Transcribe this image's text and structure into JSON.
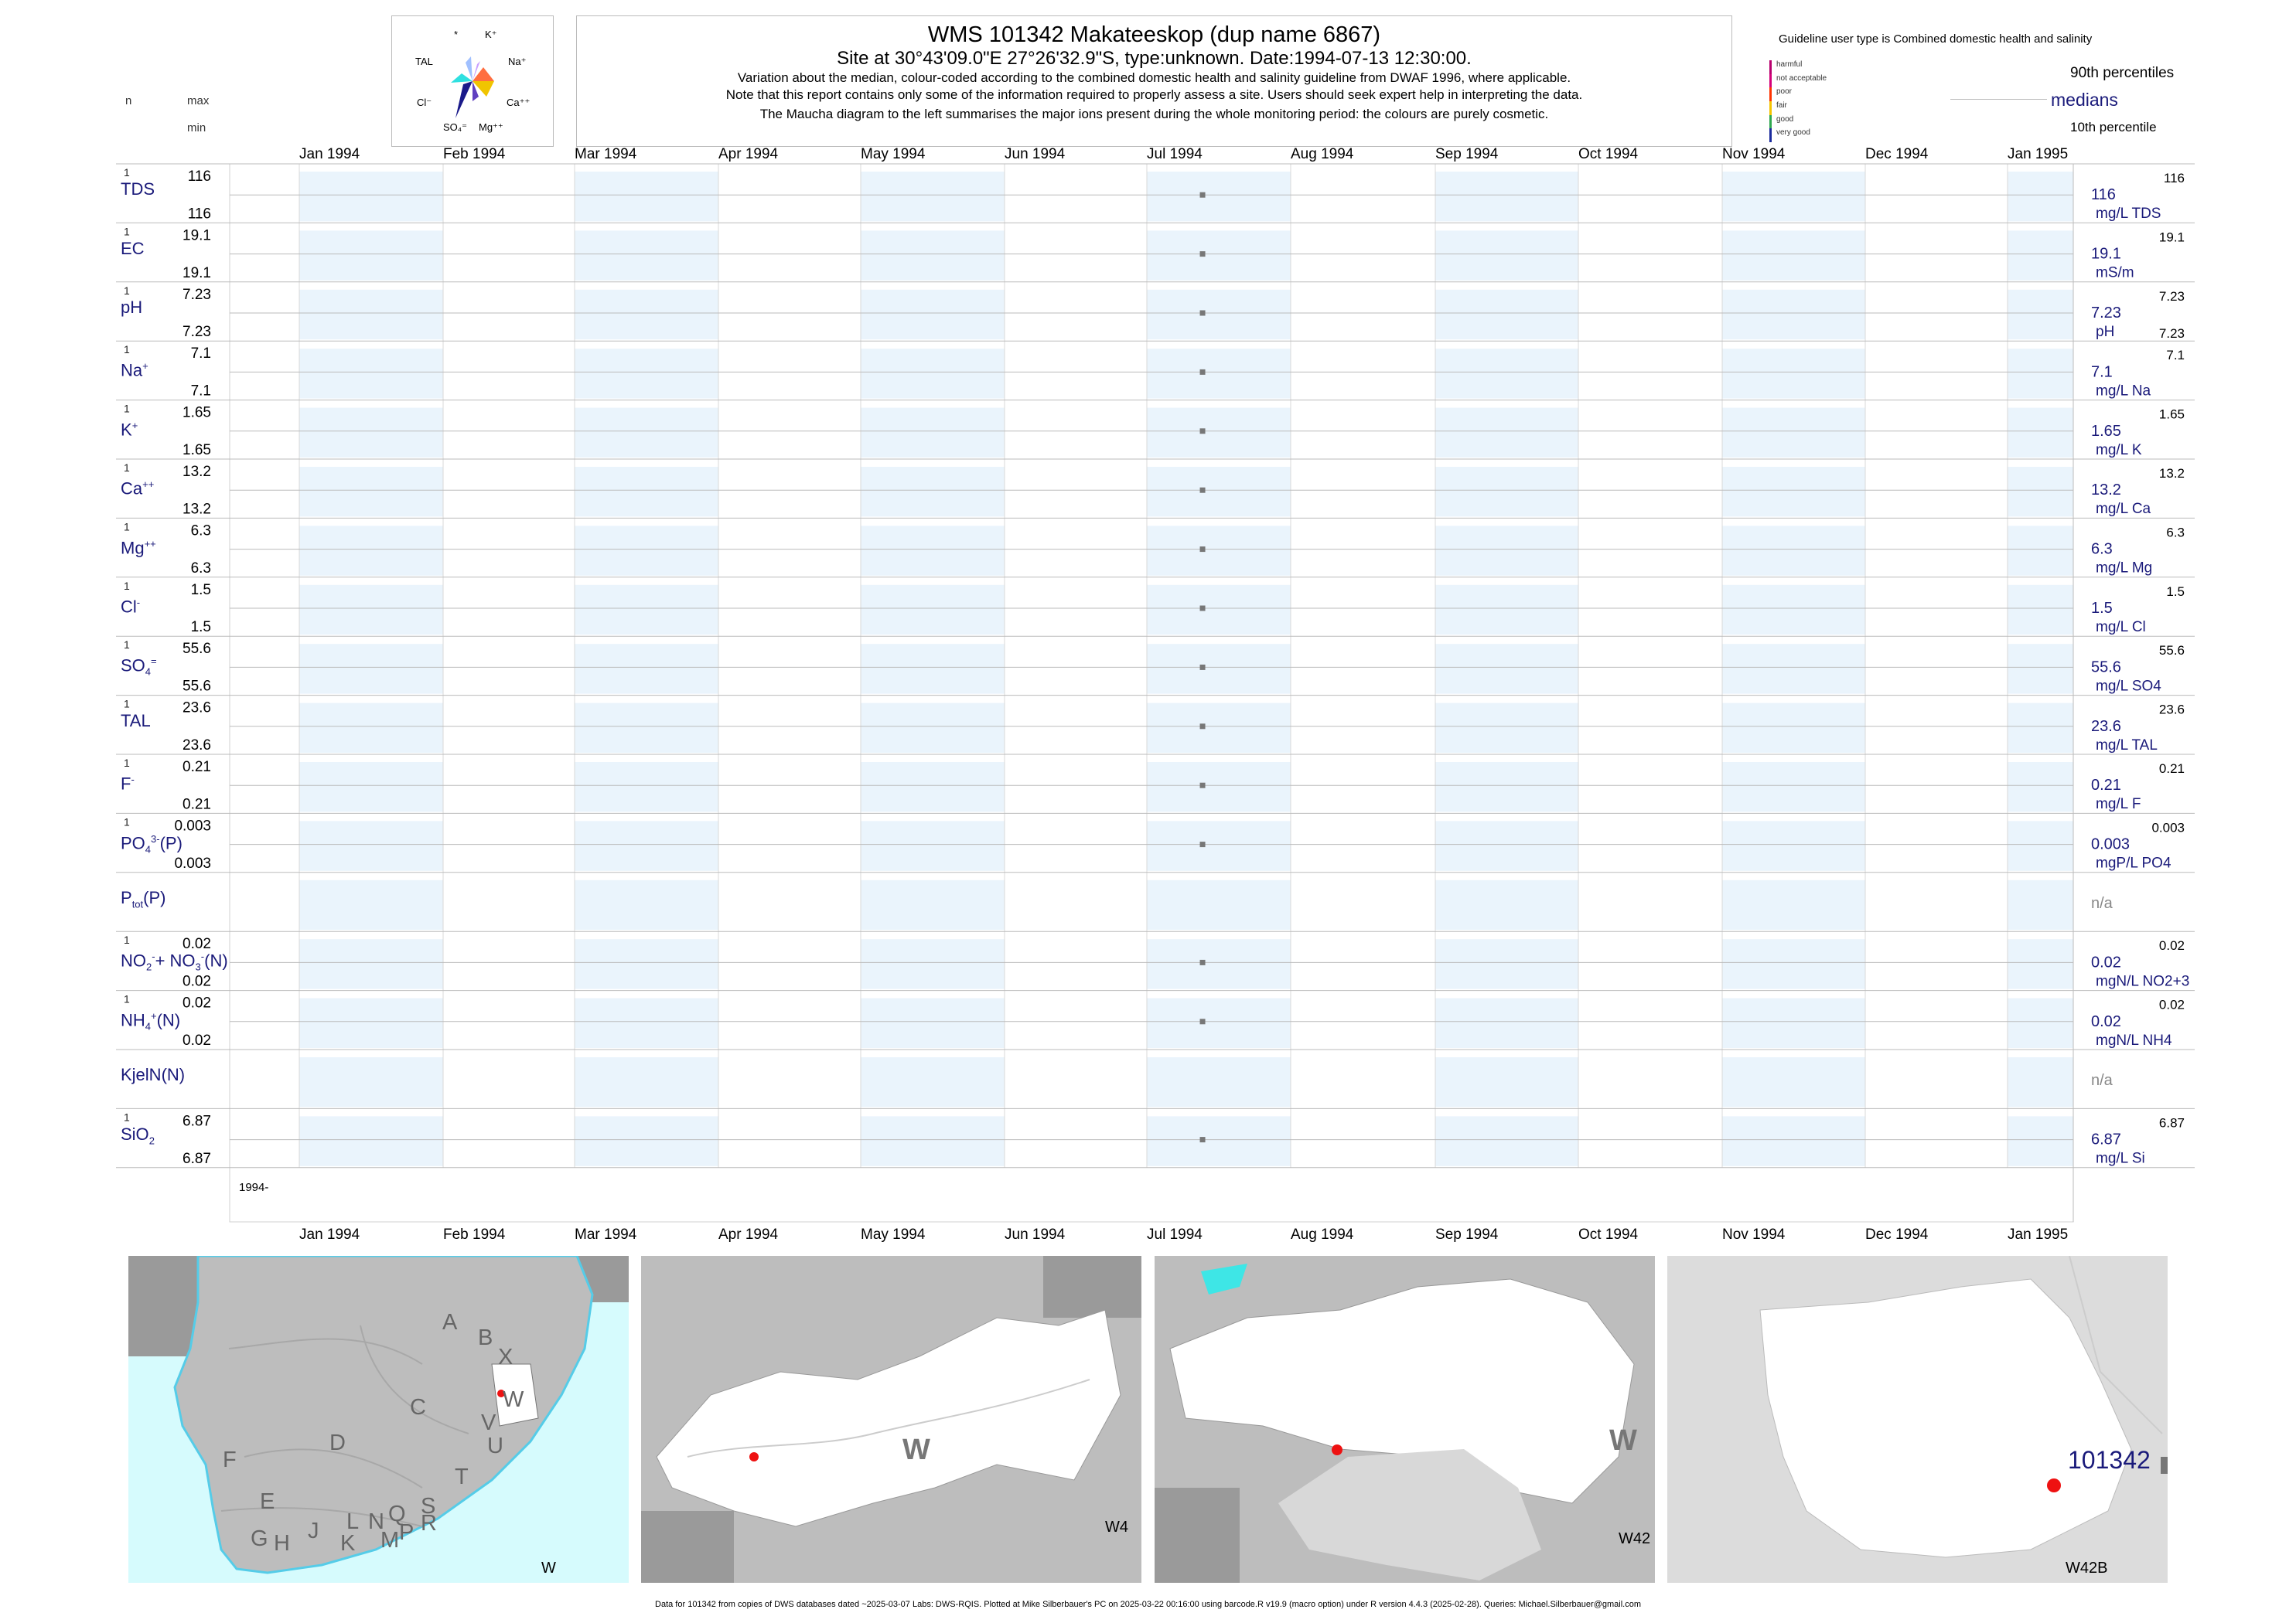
{
  "header": {
    "title": "WMS 101342  Makateeskop (dup name 6867)",
    "subtitle": "Site at 30°43'09.0\"E 27°26'32.9\"S, type:unknown. Date:1994-07-13 12:30:00.",
    "note1": "Variation about the median,  colour-coded according to the combined domestic health and salinity guideline from DWAF 1996, where applicable.",
    "note2": "Note that this report contains only some of the information required to properly assess a site. Users should seek expert help in interpreting the data.",
    "note3": "The Maucha diagram to the left summarises the major ions present during the whole monitoring period: the colours are purely cosmetic."
  },
  "left_header": {
    "n": "n",
    "max": "max",
    "min": "min"
  },
  "maucha": {
    "labels": [
      "*",
      "K⁺",
      "TAL",
      "Na⁺",
      "Cl⁻",
      "Ca⁺⁺",
      "SO₄⁼",
      "Mg⁺⁺"
    ]
  },
  "guideline": {
    "title": "Guideline user type is Combined domestic health and salinity",
    "levels": [
      {
        "label": "harmful",
        "color": "#b8006e"
      },
      {
        "label": "not acceptable",
        "color": "#d4007a"
      },
      {
        "label": "poor",
        "color": "#ff3300"
      },
      {
        "label": "fair",
        "color": "#f5c400"
      },
      {
        "label": "good",
        "color": "#2fa84f"
      },
      {
        "label": "very good",
        "color": "#1a2a9c"
      }
    ],
    "p90": "90th percentiles",
    "medians": "medians",
    "p10": "10th percentile"
  },
  "chart_data": {
    "type": "scatter",
    "x_start_label": "1994-",
    "months": [
      "Jan 1994",
      "Feb 1994",
      "Mar 1994",
      "Apr 1994",
      "May 1994",
      "Jun 1994",
      "Jul 1994",
      "Aug 1994",
      "Sep 1994",
      "Oct 1994",
      "Nov 1994",
      "Dec 1994",
      "Jan 1995"
    ],
    "sample_date": "1994-07-13",
    "grid": true,
    "series": [
      {
        "name": "TDS",
        "html": "TDS",
        "n": "1",
        "max": "116",
        "min": "116",
        "median": "116",
        "r_top": "116",
        "r_bot": "",
        "unit": "mg/L TDS",
        "value": 116
      },
      {
        "name": "EC",
        "html": "EC",
        "n": "1",
        "max": "19.1",
        "min": "19.1",
        "median": "19.1",
        "r_top": "19.1",
        "r_bot": "",
        "unit": "mS/m",
        "value": 19.1
      },
      {
        "name": "pH",
        "html": "pH",
        "n": "1",
        "max": "7.23",
        "min": "7.23",
        "median": "7.23",
        "r_top": "7.23",
        "r_bot": "7.23",
        "unit": "pH",
        "value": 7.23
      },
      {
        "name": "Na+",
        "html": "Na<sup>+</sup>",
        "n": "1",
        "max": "7.1",
        "min": "7.1",
        "median": "7.1",
        "r_top": "7.1",
        "r_bot": "",
        "unit": "mg/L Na",
        "value": 7.1
      },
      {
        "name": "K+",
        "html": "K<sup>+</sup>",
        "n": "1",
        "max": "1.65",
        "min": "1.65",
        "median": "1.65",
        "r_top": "1.65",
        "r_bot": "",
        "unit": "mg/L K",
        "value": 1.65
      },
      {
        "name": "Ca++",
        "html": "Ca<sup>++</sup>",
        "n": "1",
        "max": "13.2",
        "min": "13.2",
        "median": "13.2",
        "r_top": "13.2",
        "r_bot": "",
        "unit": "mg/L Ca",
        "value": 13.2
      },
      {
        "name": "Mg++",
        "html": "Mg<sup>++</sup>",
        "n": "1",
        "max": "6.3",
        "min": "6.3",
        "median": "6.3",
        "r_top": "6.3",
        "r_bot": "",
        "unit": "mg/L Mg",
        "value": 6.3
      },
      {
        "name": "Cl-",
        "html": "Cl<sup>-</sup>",
        "n": "1",
        "max": "1.5",
        "min": "1.5",
        "median": "1.5",
        "r_top": "1.5",
        "r_bot": "",
        "unit": "mg/L Cl",
        "value": 1.5
      },
      {
        "name": "SO4=",
        "html": "SO<sub>4</sub><sup>=</sup>",
        "n": "1",
        "max": "55.6",
        "min": "55.6",
        "median": "55.6",
        "r_top": "55.6",
        "r_bot": "",
        "unit": "mg/L SO4",
        "value": 55.6
      },
      {
        "name": "TAL",
        "html": "TAL",
        "n": "1",
        "max": "23.6",
        "min": "23.6",
        "median": "23.6",
        "r_top": "23.6",
        "r_bot": "",
        "unit": "mg/L TAL",
        "value": 23.6
      },
      {
        "name": "F-",
        "html": "F<sup>-</sup>",
        "n": "1",
        "max": "0.21",
        "min": "0.21",
        "median": "0.21",
        "r_top": "0.21",
        "r_bot": "",
        "unit": "mg/L F",
        "value": 0.21
      },
      {
        "name": "PO4(P)",
        "html": "PO<sub>4</sub><sup>3-</sup>(P)",
        "n": "1",
        "max": "0.003",
        "min": "0.003",
        "median": "0.003",
        "r_top": "0.003",
        "r_bot": "",
        "unit": "mgP/L PO4",
        "value": 0.003
      },
      {
        "name": "Ptot(P)",
        "html": "P<sub>tot</sub>(P)",
        "n": "",
        "max": "",
        "min": "",
        "median": "n/a",
        "r_top": "",
        "r_bot": "",
        "unit": "",
        "value": null
      },
      {
        "name": "NO2+NO3(N)",
        "html": "NO<sub>2</sub><sup>-</sup>+ NO<sub>3</sub><sup>-</sup>(N)",
        "n": "1",
        "max": "0.02",
        "min": "0.02",
        "median": "0.02",
        "r_top": "0.02",
        "r_bot": "",
        "unit": "mgN/L NO2+3",
        "value": 0.02
      },
      {
        "name": "NH4(N)",
        "html": "NH<sub>4</sub><sup>+</sup>(N)",
        "n": "1",
        "max": "0.02",
        "min": "0.02",
        "median": "0.02",
        "r_top": "0.02",
        "r_bot": "",
        "unit": "mgN/L NH4",
        "value": 0.02
      },
      {
        "name": "KjelN(N)",
        "html": "KjelN(N)",
        "n": "",
        "max": "",
        "min": "",
        "median": "n/a",
        "r_top": "",
        "r_bot": "",
        "unit": "",
        "value": null
      },
      {
        "name": "SiO2",
        "html": "SiO<sub>2</sub>",
        "n": "1",
        "max": "6.87",
        "min": "6.87",
        "median": "6.87",
        "r_top": "6.87",
        "r_bot": "",
        "unit": "mg/L Si",
        "value": 6.87
      }
    ]
  },
  "maps": {
    "m1_letters": [
      "A",
      "B",
      "X",
      "C",
      "W",
      "V",
      "U",
      "D",
      "T",
      "F",
      "E",
      "G",
      "H",
      "J",
      "K",
      "L",
      "N",
      "Q",
      "M",
      "P",
      "R",
      "S"
    ],
    "m1_caption": "W",
    "m2_letter": "W",
    "m2_caption": "W4",
    "m3_letter": "W",
    "m3_caption": "W42",
    "m4_site": "101342",
    "m4_caption": "W42B"
  },
  "footer": "Data for 101342 from copies of DWS databases dated ~2025-03-07 Labs: DWS-RQIS. Plotted at Mike Silberbauer's PC on 2025-03-22 00:16:00 using barcode.R v19.9 (macro option) under R version 4.4.3 (2025-02-28). Queries: Michael.Silberbauer@gmail.com",
  "colors": {
    "accent": "#1a1a7a",
    "band": "#eaf4fc",
    "grid": "#bbbbbb",
    "point": "#777777",
    "ocean": "#d6fbfd",
    "site": "#ee1111"
  }
}
